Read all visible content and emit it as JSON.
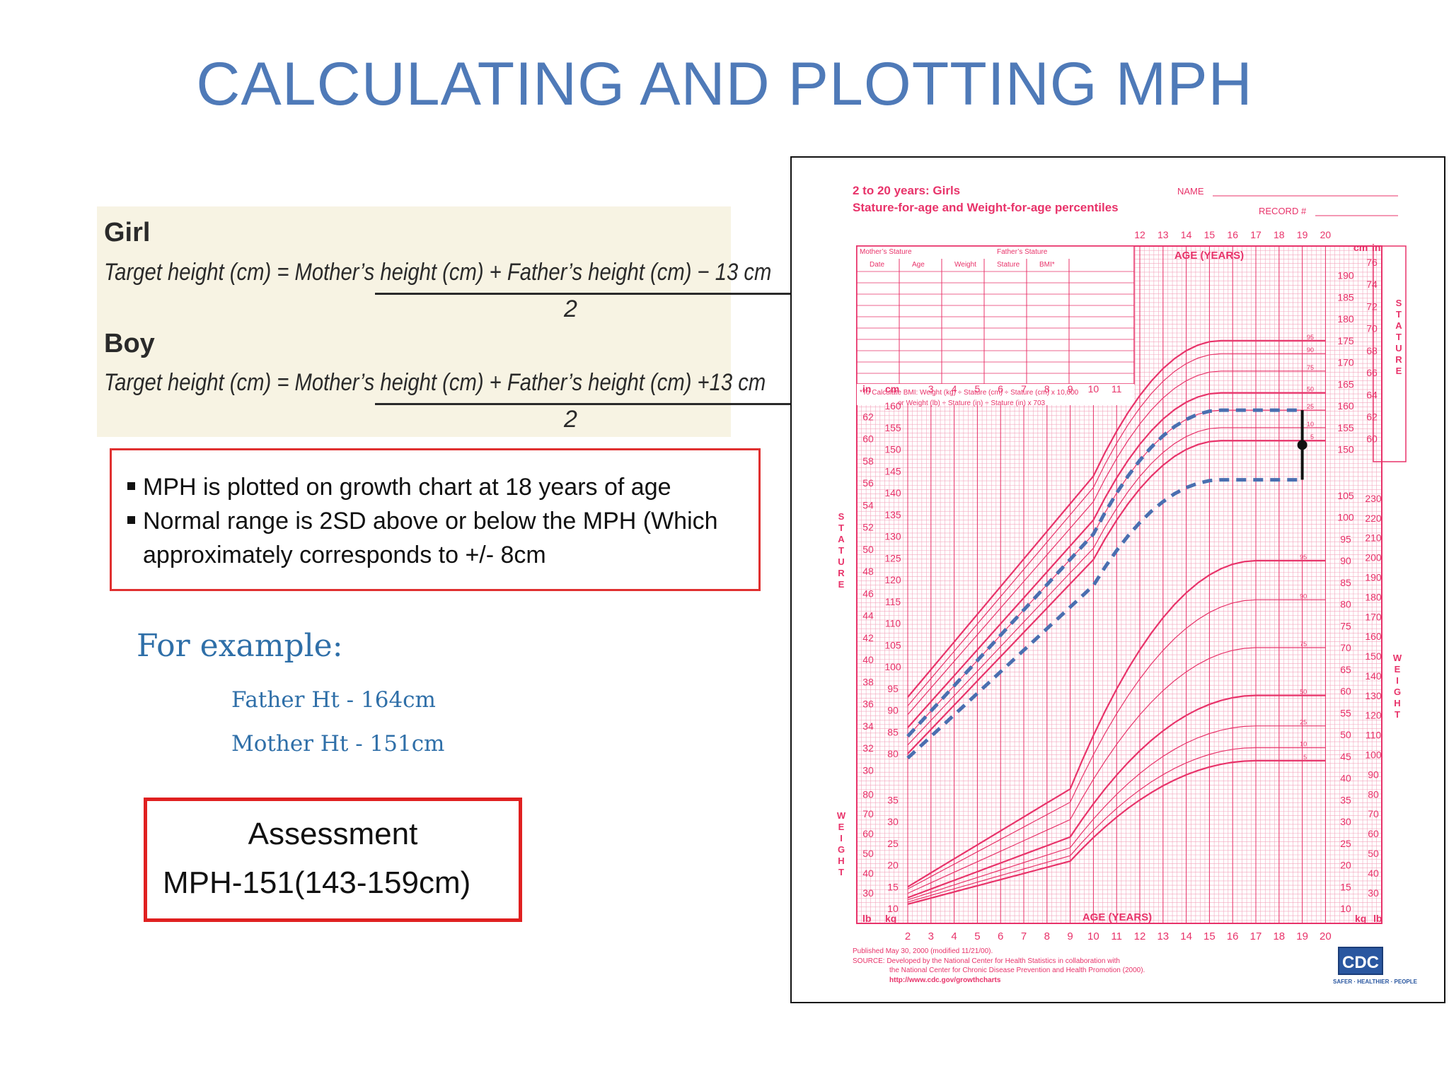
{
  "slide": {
    "title": "CALCULATING AND PLOTTING MPH"
  },
  "formulas": {
    "girl_label": "Girl",
    "girl_numerator": "Target height (cm) = Mother’s height (cm) + Father’s height (cm) − 13 cm",
    "girl_denominator": "2",
    "boy_label": "Boy",
    "boy_numerator": "Target height (cm) = Mother’s height (cm) + Father’s height (cm) +13 cm",
    "boy_denominator": "2"
  },
  "notes": {
    "bullet1": "MPH is plotted on growth chart at 18 years of age",
    "bullet2_line1": "Normal range is 2SD above or below the MPH (Which",
    "bullet2_line2": "approximately corresponds to +/- 8cm"
  },
  "example": {
    "heading": "For example:",
    "father": "Father Ht - 164cm",
    "mother": "Mother Ht - 151cm"
  },
  "assessment": {
    "label": "Assessment",
    "value": "MPH-151(143-159cm)"
  },
  "growth_chart": {
    "title_line1": "2 to 20 years: Girls",
    "title_line2": "Stature-for-age and Weight-for-age percentiles",
    "name_label": "NAME",
    "record_label": "RECORD #",
    "mothers_stature": "Mother’s Stature",
    "fathers_stature": "Father’s Stature",
    "table_headers": [
      "Date",
      "Age",
      "Weight",
      "Stature",
      "BMI*"
    ],
    "bmi_note_line1": "*To Calculate BMI: Weight (kg) ÷ Stature (cm) ÷ Stature (cm) x 10,000",
    "bmi_note_line2": "or Weight (lb) ÷ Stature (in) ÷ Stature (in) x 703",
    "age_axis_label": "AGE (YEARS)",
    "age_ticks": [
      "2",
      "3",
      "4",
      "5",
      "6",
      "7",
      "8",
      "9",
      "10",
      "11",
      "12",
      "13",
      "14",
      "15",
      "16",
      "17",
      "18",
      "19",
      "20"
    ],
    "age_ticks_top": [
      "12",
      "13",
      "14",
      "15",
      "16",
      "17",
      "18",
      "19",
      "20"
    ],
    "age_ticks_mid": [
      "3",
      "4",
      "5",
      "6",
      "7",
      "8",
      "9",
      "10",
      "11"
    ],
    "stature_cm_left": [
      "160",
      "155",
      "150",
      "145",
      "140",
      "135",
      "130",
      "125",
      "120",
      "115",
      "110",
      "105",
      "100",
      "95",
      "90",
      "85",
      "80"
    ],
    "stature_in_left": [
      "62",
      "60",
      "58",
      "56",
      "54",
      "52",
      "50",
      "48",
      "46",
      "44",
      "42",
      "40",
      "38",
      "36",
      "34",
      "32",
      "30"
    ],
    "stature_cm_right": [
      "190",
      "185",
      "180",
      "175",
      "170",
      "165",
      "160",
      "155",
      "150"
    ],
    "stature_in_right": [
      "76",
      "74",
      "72",
      "70",
      "68",
      "66",
      "64",
      "62",
      "60"
    ],
    "weight_kg_right": [
      "105",
      "100",
      "95",
      "90",
      "85",
      "80",
      "75",
      "70",
      "65",
      "60",
      "55",
      "50",
      "45",
      "40",
      "35",
      "30",
      "25",
      "20",
      "15",
      "10"
    ],
    "weight_lb_right": [
      "230",
      "220",
      "210",
      "200",
      "190",
      "180",
      "170",
      "160",
      "150",
      "140",
      "130",
      "120",
      "110",
      "100",
      "90",
      "80",
      "70",
      "60",
      "50",
      "40",
      "30"
    ],
    "weight_kg_left": [
      "35",
      "30",
      "25",
      "20",
      "15",
      "10"
    ],
    "weight_lb_left": [
      "80",
      "70",
      "60",
      "50",
      "40",
      "30"
    ],
    "stature_percentiles": [
      "95",
      "90",
      "75",
      "50",
      "25",
      "10",
      "5"
    ],
    "weight_percentiles": [
      "95",
      "90",
      "75",
      "50",
      "25",
      "10",
      "5"
    ],
    "unit_cm": "cm",
    "unit_in": "in",
    "unit_kg": "kg",
    "unit_lb": "lb",
    "side_stature": "STATURE",
    "side_weight": "WEIGHT",
    "published": "Published May 30, 2000 (modified 11/21/00).",
    "source_line1": "SOURCE: Developed by the National Center for Health Statistics in collaboration with",
    "source_line2": "the National Center for Chronic Disease Prevention and Health Promotion (2000).",
    "source_url": "http://www.cdc.gov/growthcharts",
    "logo": "CDC",
    "logo_tagline": "SAFER · HEALTHIER · PEOPLE",
    "colors": {
      "chart_pink": "#e8336a",
      "grid_pink": "#f3a6bd",
      "dash_blue": "#4a6fb0",
      "mph_marker": "#111111"
    }
  }
}
